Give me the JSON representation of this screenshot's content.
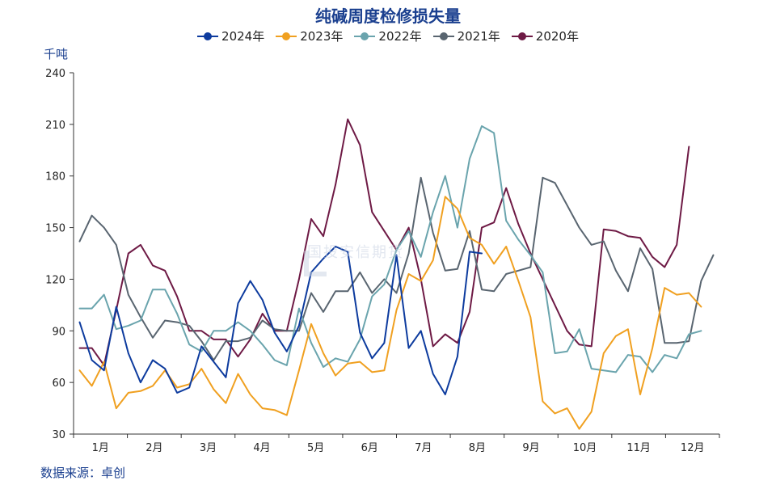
{
  "chart_data": {
    "type": "line",
    "title": "纯碱周度检修损失量",
    "unit": "千吨",
    "source": "数据来源：卓创",
    "watermark": "国投安信期货",
    "ylim": [
      30,
      240
    ],
    "yticks": [
      30,
      60,
      90,
      120,
      150,
      180,
      210,
      240
    ],
    "months": [
      "1月",
      "2月",
      "3月",
      "4月",
      "5月",
      "6月",
      "7月",
      "8月",
      "9月",
      "10月",
      "11月",
      "12月"
    ],
    "weeks_total": 53,
    "series": [
      {
        "name": "2024年",
        "color": "#0d3b9e",
        "values": [
          95,
          73,
          67,
          104,
          77,
          60,
          73,
          68,
          54,
          57,
          81,
          72,
          63,
          106,
          119,
          108,
          89,
          78,
          93,
          124,
          132,
          139,
          136,
          89,
          74,
          83,
          134,
          80,
          90,
          65,
          53,
          75,
          136,
          135
        ]
      },
      {
        "name": "2023年",
        "color": "#f0a020",
        "values": [
          67,
          58,
          72,
          45,
          54,
          55,
          58,
          67,
          57,
          59,
          68,
          56,
          48,
          65,
          53,
          45,
          44,
          41,
          67,
          94,
          77,
          64,
          71,
          72,
          66,
          67,
          102,
          123,
          119,
          131,
          168,
          161,
          144,
          140,
          129,
          139,
          119,
          98,
          49,
          42,
          45,
          33,
          43,
          77,
          87,
          91,
          53,
          80,
          115,
          111,
          112,
          104
        ]
      },
      {
        "name": "2022年",
        "color": "#6aa4ad",
        "values": [
          103,
          103,
          111,
          91,
          93,
          96,
          114,
          114,
          100,
          82,
          78,
          90,
          90,
          95,
          90,
          82,
          73,
          70,
          103,
          83,
          69,
          74,
          72,
          85,
          110,
          117,
          137,
          148,
          133,
          159,
          180,
          150,
          190,
          209,
          205,
          154,
          143,
          134,
          124,
          77,
          78,
          91,
          68,
          67,
          66,
          76,
          75,
          66,
          76,
          74,
          88,
          90
        ]
      },
      {
        "name": "2021年",
        "color": "#596570",
        "values": [
          142,
          157,
          150,
          140,
          111,
          98,
          86,
          96,
          95,
          93,
          84,
          73,
          84,
          84,
          86,
          96,
          91,
          90,
          90,
          112,
          101,
          113,
          113,
          124,
          112,
          120,
          112,
          135,
          179,
          147,
          125,
          126,
          148,
          114,
          113,
          123,
          125,
          127,
          179,
          176,
          163,
          150,
          140,
          142,
          125,
          113,
          138,
          126,
          83,
          83,
          84,
          119,
          134
        ]
      },
      {
        "name": "2020年",
        "color": "#6e1a45",
        "values": [
          80,
          80,
          70,
          102,
          135,
          140,
          128,
          125,
          110,
          90,
          90,
          85,
          85,
          75,
          85,
          100,
          90,
          90,
          120,
          155,
          145,
          175,
          213,
          198,
          159,
          148,
          137,
          150,
          120,
          81,
          88,
          83,
          101,
          150,
          153,
          173,
          152,
          135,
          120,
          105,
          90,
          82,
          81,
          149,
          148,
          145,
          144,
          133,
          127,
          140,
          197
        ]
      }
    ]
  }
}
